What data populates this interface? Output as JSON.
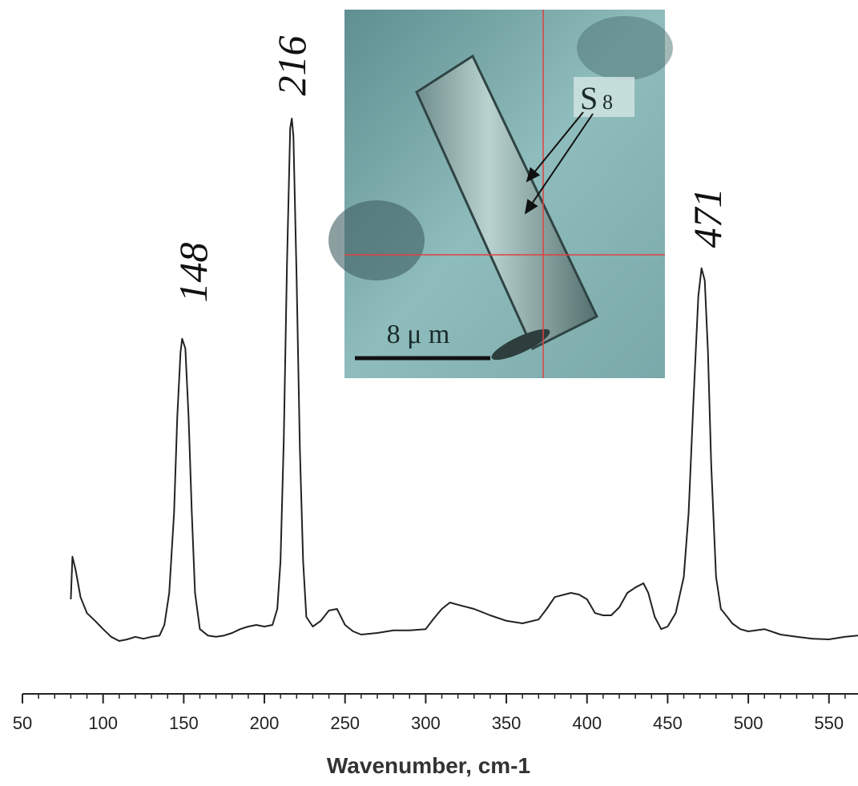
{
  "chart_data": {
    "type": "line",
    "x_label": "Wavenumber, cm-1",
    "xlim": [
      50,
      568
    ],
    "xticks": [
      50,
      100,
      150,
      200,
      250,
      300,
      350,
      400,
      450,
      500,
      550
    ],
    "xticks_minor": [
      60,
      70,
      80,
      90,
      110,
      120,
      130,
      140,
      160,
      170,
      180,
      190,
      210,
      220,
      230,
      240,
      260,
      270,
      280,
      290,
      310,
      320,
      330,
      340,
      360,
      370,
      380,
      390,
      410,
      420,
      430,
      440,
      460,
      470,
      480,
      490,
      510,
      520,
      530,
      540,
      560
    ],
    "ylim": [
      0,
      100
    ],
    "color": "#222222",
    "x": [
      80,
      81,
      83,
      86,
      90,
      95,
      100,
      105,
      110,
      115,
      120,
      125,
      130,
      135,
      138,
      141,
      144,
      146,
      148,
      149,
      151,
      153,
      155,
      157,
      160,
      165,
      170,
      175,
      180,
      185,
      190,
      195,
      200,
      205,
      208,
      210,
      212,
      214,
      216,
      217,
      218,
      220,
      222,
      224,
      226,
      230,
      235,
      240,
      245,
      250,
      255,
      260,
      270,
      280,
      290,
      300,
      305,
      310,
      315,
      320,
      330,
      340,
      350,
      360,
      370,
      375,
      380,
      390,
      395,
      400,
      405,
      410,
      415,
      420,
      425,
      430,
      435,
      438,
      442,
      446,
      450,
      455,
      460,
      463,
      466,
      469,
      471,
      473,
      475,
      477,
      480,
      483,
      487,
      490,
      495,
      500,
      510,
      520,
      530,
      540,
      550,
      560,
      568
    ],
    "values": [
      14.75,
      21.4,
      19.3,
      15.1,
      12.6,
      11.4,
      10.1,
      8.9,
      8.25,
      8.5,
      8.9,
      8.6,
      8.9,
      9.1,
      10.75,
      15.75,
      28.25,
      43.25,
      53.25,
      55.4,
      53.9,
      43.25,
      28.25,
      15.75,
      10.1,
      9.1,
      8.9,
      9.1,
      9.5,
      10.1,
      10.5,
      10.75,
      10.5,
      10.75,
      13.25,
      20.75,
      39.5,
      67,
      88.25,
      89.75,
      87,
      64.5,
      38.25,
      20.75,
      12,
      10.5,
      11.4,
      13,
      13.25,
      10.75,
      9.75,
      9.25,
      9.5,
      9.9,
      9.9,
      10.1,
      11.75,
      13.25,
      14.25,
      13.9,
      13.25,
      12.25,
      11.4,
      11,
      11.6,
      13.25,
      15.1,
      15.75,
      15.5,
      14.75,
      12.6,
      12.25,
      12.25,
      13.5,
      15.75,
      16.6,
      17.25,
      15.75,
      12,
      10.1,
      10.5,
      12.6,
      18.25,
      28.25,
      45.75,
      62,
      66.4,
      64.5,
      53.25,
      35.75,
      18.25,
      13.25,
      12,
      11,
      10.1,
      9.75,
      10.1,
      9.25,
      8.9,
      8.6,
      8.5,
      8.9,
      9.1
    ],
    "annotations": [
      {
        "text": "148"
      },
      {
        "text": "216"
      },
      {
        "text": "471"
      }
    ],
    "inset": {
      "label": "S",
      "label_sub": "8",
      "scale_label": "8 μ m"
    }
  }
}
